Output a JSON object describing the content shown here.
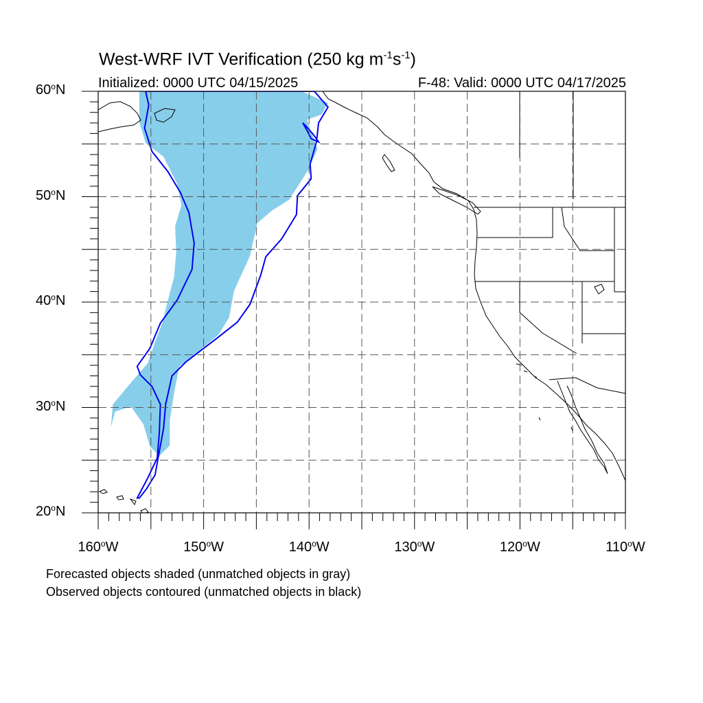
{
  "title": {
    "main": "West-WRF IVT Verification (250 kg m",
    "sup1": "-1",
    "mid": "s",
    "sup2": "-1",
    "end": ")"
  },
  "subtitle_left": "Initialized: 0000 UTC 04/15/2025",
  "subtitle_right": "F-48: Valid: 0000 UTC 04/17/2025",
  "axes": {
    "lat_labels": [
      {
        "value": 60,
        "text": "60",
        "suffix": "N"
      },
      {
        "value": 50,
        "text": "50",
        "suffix": "N"
      },
      {
        "value": 40,
        "text": "40",
        "suffix": "N"
      },
      {
        "value": 30,
        "text": "30",
        "suffix": "N"
      },
      {
        "value": 20,
        "text": "20",
        "suffix": "N"
      }
    ],
    "lon_labels": [
      {
        "value": -160,
        "text": "160",
        "suffix": "W"
      },
      {
        "value": -150,
        "text": "150",
        "suffix": "W"
      },
      {
        "value": -140,
        "text": "140",
        "suffix": "W"
      },
      {
        "value": -130,
        "text": "130",
        "suffix": "W"
      },
      {
        "value": -120,
        "text": "120",
        "suffix": "W"
      },
      {
        "value": -110,
        "text": "110",
        "suffix": "W"
      }
    ],
    "lon_range": [
      -160,
      -110
    ],
    "lat_range": [
      20,
      60
    ],
    "grid_interval_deg": 5,
    "grid_style": "dashed"
  },
  "legend_notes": [
    "Forecasted objects shaded (unmatched objects in gray)",
    "Observed objects contoured (unmatched objects in black)"
  ],
  "colors": {
    "forecast_fill": "#87ceeb",
    "observed_contour": "#0000ee",
    "coastline": "#000000",
    "grid": "#555555"
  },
  "forecast_object": {
    "outline": [
      [
        -156.1,
        60
      ],
      [
        -140.7,
        60
      ],
      [
        -138.2,
        58.9
      ],
      [
        -138.8,
        57.8
      ],
      [
        -140.2,
        57.3
      ],
      [
        -139.2,
        54.5
      ],
      [
        -140.1,
        52.5
      ],
      [
        -141.9,
        49.7
      ],
      [
        -143.5,
        48.7
      ],
      [
        -144.9,
        47.5
      ],
      [
        -145.6,
        44.4
      ],
      [
        -147.1,
        41.1
      ],
      [
        -147.6,
        38.5
      ],
      [
        -148.6,
        36.9
      ],
      [
        -150.4,
        35.4
      ],
      [
        -152.3,
        33.9
      ],
      [
        -152.8,
        31.4
      ],
      [
        -153.2,
        28.8
      ],
      [
        -153.2,
        26.4
      ],
      [
        -154.2,
        25.4
      ],
      [
        -155.1,
        26.3
      ],
      [
        -155.7,
        28.4
      ],
      [
        -156.9,
        30.1
      ],
      [
        -158.4,
        29.6
      ],
      [
        -158.8,
        28.1
      ],
      [
        -158.6,
        30.3
      ],
      [
        -157.1,
        32.1
      ],
      [
        -155.3,
        34.2
      ],
      [
        -154.6,
        36.2
      ],
      [
        -153.9,
        38.1
      ],
      [
        -153.3,
        40.5
      ],
      [
        -152.8,
        42.4
      ],
      [
        -152.6,
        44.8
      ],
      [
        -152.7,
        47.2
      ],
      [
        -152.1,
        49.2
      ],
      [
        -152.5,
        51.2
      ],
      [
        -153.8,
        53.8
      ],
      [
        -155.5,
        55.1
      ],
      [
        -156.1,
        57.1
      ]
    ]
  },
  "observed_object": {
    "outline": [
      [
        -155.5,
        60
      ],
      [
        -139.5,
        60
      ],
      [
        -138.2,
        58.5
      ],
      [
        -139.1,
        57.0
      ],
      [
        -139.3,
        55.2
      ],
      [
        -139.9,
        53.1
      ],
      [
        -139.8,
        51.7
      ],
      [
        -141.1,
        50.1
      ],
      [
        -141.2,
        48.3
      ],
      [
        -142.6,
        46.0
      ],
      [
        -144.1,
        44.3
      ],
      [
        -144.6,
        42.5
      ],
      [
        -145.6,
        39.8
      ],
      [
        -146.8,
        38.1
      ],
      [
        -148.7,
        36.6
      ],
      [
        -150.4,
        35.3
      ],
      [
        -151.7,
        34.3
      ],
      [
        -153.0,
        33.0
      ],
      [
        -153.6,
        30.3
      ],
      [
        -153.8,
        28.0
      ],
      [
        -154.3,
        25.3
      ],
      [
        -154.6,
        23.6
      ],
      [
        -155.4,
        22.3
      ],
      [
        -156.1,
        21.4
      ],
      [
        -156.3,
        21.4
      ],
      [
        -155.3,
        23.3
      ],
      [
        -154.4,
        25.2
      ],
      [
        -154.2,
        27.6
      ],
      [
        -154.1,
        30.3
      ],
      [
        -154.9,
        32.0
      ],
      [
        -156.0,
        33.1
      ],
      [
        -156.3,
        33.9
      ],
      [
        -155.1,
        35.6
      ],
      [
        -154.1,
        38.0
      ],
      [
        -152.5,
        40.2
      ],
      [
        -151.1,
        43.1
      ],
      [
        -150.9,
        45.6
      ],
      [
        -151.4,
        48.5
      ],
      [
        -152.2,
        50.4
      ],
      [
        -153.4,
        52.4
      ],
      [
        -154.9,
        54.3
      ],
      [
        -155.6,
        56.5
      ],
      [
        -155.2,
        58.7
      ]
    ]
  },
  "observed_loop_gulf": {
    "outline": [
      [
        -140.6,
        57.0
      ],
      [
        -140.2,
        56.3
      ],
      [
        -139.8,
        55.5
      ],
      [
        -139.1,
        55.2
      ],
      [
        -139.6,
        55.9
      ],
      [
        -140.3,
        56.7
      ]
    ]
  },
  "states_and_borders": "USA, Canada, Mexico"
}
